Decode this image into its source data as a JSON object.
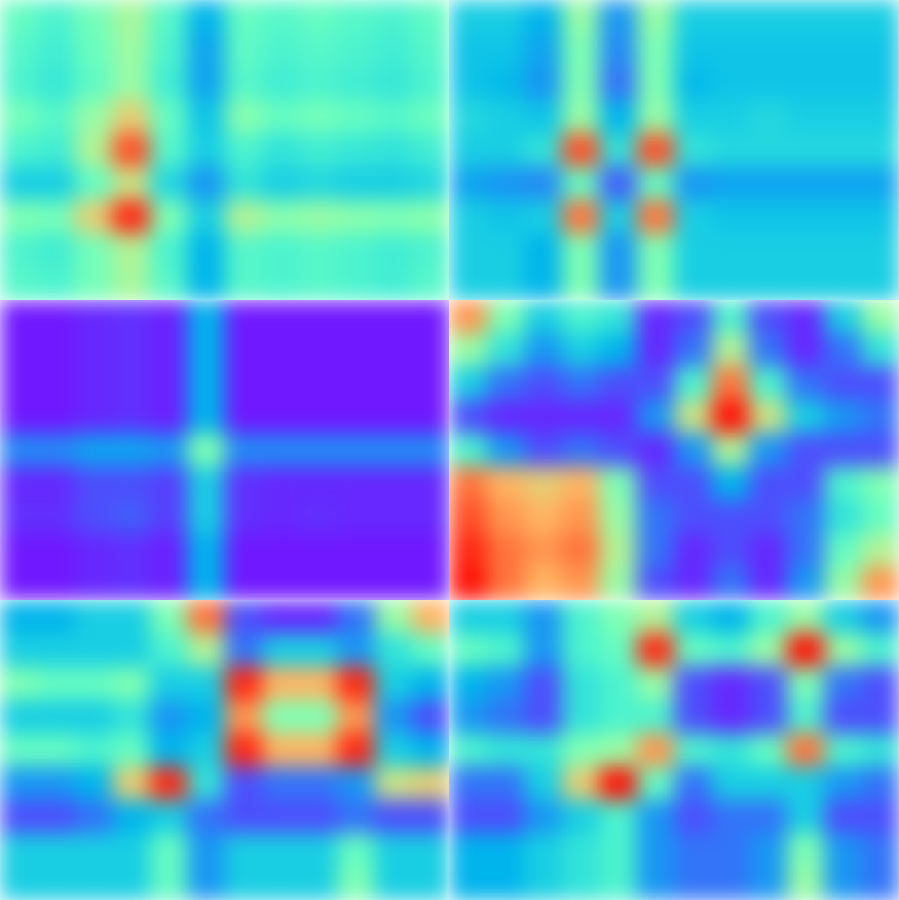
{
  "chart_data": [
    {
      "type": "heatmap",
      "color": "rainbow",
      "tick_labels": false,
      "zlim": [
        0,
        1
      ],
      "cells": [
        [
          0.45,
          0.4,
          0.48,
          0.58,
          0.42,
          0.25,
          0.45,
          0.42,
          0.45,
          0.42,
          0.4,
          0.44
        ],
        [
          0.42,
          0.38,
          0.46,
          0.56,
          0.4,
          0.22,
          0.44,
          0.4,
          0.42,
          0.4,
          0.38,
          0.42
        ],
        [
          0.4,
          0.36,
          0.44,
          0.55,
          0.38,
          0.22,
          0.42,
          0.38,
          0.4,
          0.38,
          0.36,
          0.4
        ],
        [
          0.48,
          0.42,
          0.55,
          0.7,
          0.45,
          0.28,
          0.52,
          0.45,
          0.48,
          0.45,
          0.42,
          0.46
        ],
        [
          0.4,
          0.38,
          0.6,
          0.9,
          0.42,
          0.3,
          0.4,
          0.35,
          0.38,
          0.36,
          0.35,
          0.38
        ],
        [
          0.3,
          0.3,
          0.45,
          0.65,
          0.32,
          0.2,
          0.35,
          0.3,
          0.32,
          0.3,
          0.3,
          0.32
        ],
        [
          0.5,
          0.48,
          0.7,
          0.95,
          0.5,
          0.3,
          0.6,
          0.52,
          0.55,
          0.52,
          0.5,
          0.52
        ],
        [
          0.4,
          0.38,
          0.48,
          0.6,
          0.4,
          0.25,
          0.42,
          0.4,
          0.42,
          0.4,
          0.38,
          0.4
        ],
        [
          0.42,
          0.4,
          0.48,
          0.58,
          0.42,
          0.25,
          0.42,
          0.4,
          0.42,
          0.4,
          0.38,
          0.42
        ]
      ]
    },
    {
      "type": "heatmap",
      "color": "rainbow",
      "tick_labels": false,
      "zlim": [
        0,
        1
      ],
      "cells": [
        [
          0.3,
          0.3,
          0.25,
          0.55,
          0.2,
          0.55,
          0.3,
          0.3,
          0.3,
          0.3,
          0.3,
          0.3
        ],
        [
          0.28,
          0.28,
          0.22,
          0.5,
          0.18,
          0.5,
          0.28,
          0.28,
          0.28,
          0.28,
          0.28,
          0.28
        ],
        [
          0.28,
          0.26,
          0.2,
          0.5,
          0.15,
          0.5,
          0.26,
          0.28,
          0.28,
          0.28,
          0.28,
          0.28
        ],
        [
          0.32,
          0.3,
          0.28,
          0.55,
          0.25,
          0.55,
          0.3,
          0.3,
          0.32,
          0.3,
          0.3,
          0.3
        ],
        [
          0.3,
          0.3,
          0.35,
          0.9,
          0.35,
          0.9,
          0.35,
          0.32,
          0.32,
          0.32,
          0.32,
          0.32
        ],
        [
          0.22,
          0.2,
          0.18,
          0.45,
          0.12,
          0.45,
          0.2,
          0.22,
          0.22,
          0.22,
          0.22,
          0.22
        ],
        [
          0.3,
          0.28,
          0.3,
          0.85,
          0.3,
          0.85,
          0.3,
          0.28,
          0.28,
          0.28,
          0.28,
          0.28
        ],
        [
          0.3,
          0.3,
          0.25,
          0.5,
          0.2,
          0.5,
          0.3,
          0.3,
          0.3,
          0.3,
          0.3,
          0.3
        ],
        [
          0.3,
          0.3,
          0.25,
          0.5,
          0.2,
          0.5,
          0.3,
          0.3,
          0.3,
          0.3,
          0.3,
          0.3
        ]
      ]
    },
    {
      "type": "heatmap",
      "color": "rainbow",
      "tick_labels": false,
      "zlim": [
        0,
        1
      ],
      "cells": [
        [
          0.03,
          0.03,
          0.05,
          0.06,
          0.04,
          0.25,
          0.03,
          0.03,
          0.03,
          0.03,
          0.03,
          0.03
        ],
        [
          0.03,
          0.03,
          0.05,
          0.06,
          0.04,
          0.25,
          0.03,
          0.03,
          0.03,
          0.03,
          0.03,
          0.03
        ],
        [
          0.03,
          0.03,
          0.05,
          0.06,
          0.04,
          0.25,
          0.03,
          0.03,
          0.03,
          0.03,
          0.03,
          0.03
        ],
        [
          0.03,
          0.03,
          0.05,
          0.06,
          0.04,
          0.25,
          0.03,
          0.03,
          0.03,
          0.03,
          0.03,
          0.03
        ],
        [
          0.18,
          0.18,
          0.22,
          0.22,
          0.2,
          0.5,
          0.18,
          0.18,
          0.18,
          0.18,
          0.18,
          0.18
        ],
        [
          0.05,
          0.05,
          0.1,
          0.1,
          0.08,
          0.3,
          0.06,
          0.05,
          0.05,
          0.05,
          0.05,
          0.05
        ],
        [
          0.06,
          0.06,
          0.1,
          0.12,
          0.08,
          0.3,
          0.06,
          0.05,
          0.06,
          0.05,
          0.05,
          0.05
        ],
        [
          0.03,
          0.03,
          0.05,
          0.06,
          0.04,
          0.25,
          0.03,
          0.03,
          0.03,
          0.03,
          0.03,
          0.03
        ],
        [
          0.03,
          0.03,
          0.05,
          0.06,
          0.04,
          0.25,
          0.03,
          0.03,
          0.03,
          0.03,
          0.03,
          0.03
        ]
      ]
    },
    {
      "type": "heatmap",
      "color": "rainbow",
      "tick_labels": false,
      "zlim": [
        0,
        1
      ],
      "cells": [
        [
          0.8,
          0.5,
          0.3,
          0.4,
          0.35,
          0.05,
          0.1,
          0.4,
          0.1,
          0.05,
          0.3,
          0.55
        ],
        [
          0.55,
          0.35,
          0.2,
          0.3,
          0.25,
          0.05,
          0.15,
          0.6,
          0.15,
          0.05,
          0.15,
          0.35
        ],
        [
          0.3,
          0.15,
          0.1,
          0.15,
          0.1,
          0.1,
          0.4,
          0.85,
          0.4,
          0.15,
          0.1,
          0.1
        ],
        [
          0.1,
          0.05,
          0.05,
          0.05,
          0.05,
          0.2,
          0.65,
          0.98,
          0.65,
          0.3,
          0.2,
          0.15
        ],
        [
          0.4,
          0.2,
          0.1,
          0.15,
          0.1,
          0.05,
          0.2,
          0.6,
          0.2,
          0.1,
          0.1,
          0.1
        ],
        [
          0.85,
          0.75,
          0.7,
          0.75,
          0.5,
          0.1,
          0.1,
          0.25,
          0.1,
          0.1,
          0.4,
          0.5
        ],
        [
          0.9,
          0.8,
          0.75,
          0.8,
          0.55,
          0.15,
          0.1,
          0.1,
          0.1,
          0.15,
          0.35,
          0.45
        ],
        [
          0.95,
          0.85,
          0.8,
          0.85,
          0.6,
          0.15,
          0.05,
          0.1,
          0.05,
          0.15,
          0.45,
          0.6
        ],
        [
          0.98,
          0.85,
          0.75,
          0.8,
          0.55,
          0.1,
          0.05,
          0.15,
          0.05,
          0.2,
          0.55,
          0.8
        ]
      ]
    },
    {
      "type": "heatmap",
      "color": "rainbow",
      "tick_labels": false,
      "zlim": [
        0,
        1
      ],
      "cells": [
        [
          0.25,
          0.25,
          0.3,
          0.3,
          0.5,
          0.85,
          0.1,
          0.05,
          0.05,
          0.15,
          0.55,
          0.75
        ],
        [
          0.3,
          0.3,
          0.3,
          0.3,
          0.4,
          0.6,
          0.15,
          0.3,
          0.3,
          0.2,
          0.35,
          0.45
        ],
        [
          0.5,
          0.45,
          0.45,
          0.5,
          0.3,
          0.3,
          0.95,
          0.75,
          0.75,
          0.95,
          0.3,
          0.25
        ],
        [
          0.3,
          0.3,
          0.3,
          0.35,
          0.2,
          0.25,
          0.8,
          0.5,
          0.5,
          0.8,
          0.2,
          0.1
        ],
        [
          0.45,
          0.45,
          0.4,
          0.45,
          0.25,
          0.3,
          0.95,
          0.75,
          0.75,
          0.95,
          0.3,
          0.25
        ],
        [
          0.2,
          0.2,
          0.25,
          0.7,
          0.95,
          0.35,
          0.1,
          0.15,
          0.15,
          0.2,
          0.65,
          0.7
        ],
        [
          0.1,
          0.1,
          0.15,
          0.25,
          0.3,
          0.15,
          0.1,
          0.1,
          0.1,
          0.15,
          0.1,
          0.1
        ],
        [
          0.3,
          0.3,
          0.3,
          0.3,
          0.45,
          0.2,
          0.3,
          0.3,
          0.3,
          0.45,
          0.3,
          0.3
        ],
        [
          0.3,
          0.3,
          0.3,
          0.3,
          0.45,
          0.2,
          0.3,
          0.3,
          0.3,
          0.5,
          0.3,
          0.3
        ]
      ]
    },
    {
      "type": "heatmap",
      "color": "rainbow",
      "tick_labels": false,
      "zlim": [
        0,
        1
      ],
      "cells": [
        [
          0.3,
          0.3,
          0.2,
          0.4,
          0.5,
          0.6,
          0.3,
          0.25,
          0.4,
          0.55,
          0.3,
          0.2
        ],
        [
          0.45,
          0.4,
          0.2,
          0.4,
          0.45,
          0.95,
          0.45,
          0.4,
          0.55,
          0.98,
          0.55,
          0.4
        ],
        [
          0.25,
          0.2,
          0.1,
          0.35,
          0.4,
          0.55,
          0.1,
          0.05,
          0.1,
          0.5,
          0.15,
          0.1
        ],
        [
          0.2,
          0.15,
          0.1,
          0.35,
          0.4,
          0.4,
          0.1,
          0.05,
          0.1,
          0.4,
          0.1,
          0.1
        ],
        [
          0.4,
          0.35,
          0.35,
          0.5,
          0.55,
          0.8,
          0.4,
          0.35,
          0.45,
          0.85,
          0.4,
          0.35
        ],
        [
          0.15,
          0.15,
          0.3,
          0.7,
          0.98,
          0.45,
          0.15,
          0.3,
          0.3,
          0.3,
          0.2,
          0.15
        ],
        [
          0.1,
          0.1,
          0.2,
          0.3,
          0.4,
          0.2,
          0.1,
          0.15,
          0.15,
          0.3,
          0.1,
          0.1
        ],
        [
          0.25,
          0.25,
          0.3,
          0.35,
          0.4,
          0.2,
          0.15,
          0.15,
          0.2,
          0.5,
          0.2,
          0.15
        ],
        [
          0.25,
          0.25,
          0.3,
          0.35,
          0.4,
          0.2,
          0.15,
          0.15,
          0.2,
          0.55,
          0.2,
          0.15
        ]
      ]
    }
  ]
}
